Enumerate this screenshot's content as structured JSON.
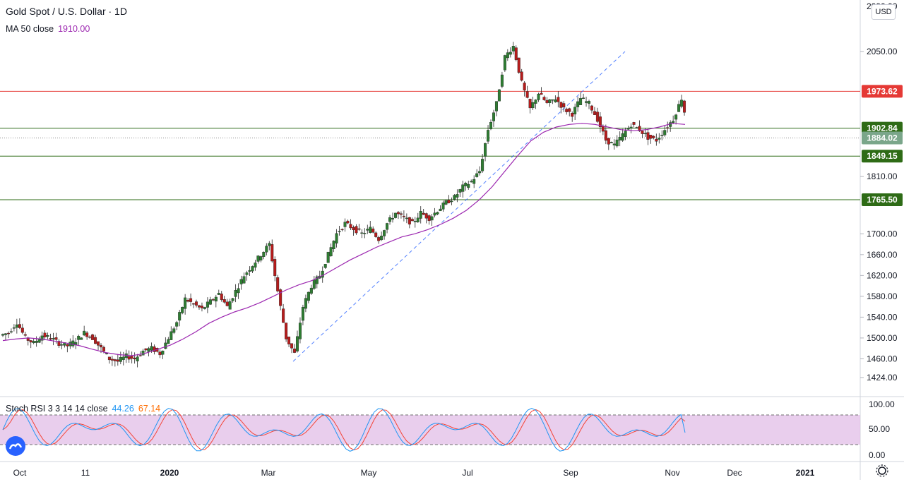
{
  "header": {
    "symbol_title": "Gold Spot / U.S. Dollar · 1D",
    "ma_label": "MA 50 close",
    "ma_value": "1910.00",
    "currency": "USD"
  },
  "stoch_legend": {
    "label": "Stoch RSI 3 3 14 14 close",
    "k_value": "44.26",
    "d_value": "67.14"
  },
  "colors": {
    "up_candle": "#2e7d32",
    "down_candle": "#b71c1c",
    "ma_line": "#9c27b0",
    "resistance_line": "#e53935",
    "support_line": "#2e6b16",
    "trend_line": "#2962ff",
    "stoch_k": "#2196f3",
    "stoch_d": "#f44336",
    "stoch_band": "#e1bee7"
  },
  "chart_data": {
    "type": "candlestick",
    "y_axis_ticks": [
      "2090.00",
      "2050.00",
      "1810.00",
      "1700.00",
      "1660.00",
      "1620.00",
      "1580.00",
      "1540.00",
      "1500.00",
      "1460.00",
      "1424.00"
    ],
    "x_axis_labels": [
      "Oct",
      "11",
      "2020",
      "Mar",
      "May",
      "Jul",
      "Sep",
      "Nov",
      "Dec",
      "2021"
    ],
    "price_lines": [
      {
        "value": 1973.62,
        "label": "1973.62",
        "kind": "resistance"
      },
      {
        "value": 1902.84,
        "label": "1902.84",
        "kind": "support"
      },
      {
        "value": 1884.02,
        "label": "1884.02",
        "kind": "last_price"
      },
      {
        "value": 1849.15,
        "label": "1849.15",
        "kind": "support"
      },
      {
        "value": 1765.5,
        "label": "1765.50",
        "kind": "support"
      }
    ],
    "close_series": [
      1510,
      1530,
      1500,
      1490,
      1505,
      1500,
      1490,
      1485,
      1495,
      1510,
      1500,
      1480,
      1460,
      1455,
      1465,
      1460,
      1475,
      1480,
      1470,
      1500,
      1530,
      1575,
      1565,
      1555,
      1570,
      1585,
      1560,
      1590,
      1620,
      1640,
      1660,
      1680,
      1590,
      1500,
      1470,
      1560,
      1600,
      1620,
      1660,
      1700,
      1720,
      1710,
      1700,
      1710,
      1690,
      1720,
      1740,
      1730,
      1720,
      1740,
      1730,
      1745,
      1760,
      1770,
      1790,
      1800,
      1820,
      1900,
      1950,
      2040,
      2060,
      1990,
      1940,
      1970,
      1950,
      1960,
      1940,
      1930,
      1960,
      1950,
      1920,
      1880,
      1870,
      1890,
      1910,
      1900,
      1885,
      1880,
      1900,
      1920,
      1960,
      1884
    ],
    "ma50_series": [
      1495,
      1498,
      1500,
      1498,
      1494,
      1490,
      1485,
      1478,
      1472,
      1468,
      1466,
      1470,
      1478,
      1486,
      1498,
      1512,
      1528,
      1540,
      1550,
      1558,
      1568,
      1580,
      1592,
      1602,
      1610,
      1622,
      1636,
      1650,
      1662,
      1674,
      1684,
      1694,
      1700,
      1708,
      1718,
      1730,
      1745,
      1765,
      1790,
      1820,
      1850,
      1878,
      1895,
      1905,
      1910,
      1912,
      1910,
      1905,
      1900,
      1898,
      1900,
      1905,
      1912,
      1910
    ],
    "trend_line": {
      "from": [
        1455,
        "Mar"
      ],
      "to": [
        2060,
        "Aug"
      ]
    },
    "stoch_rsi": {
      "levels": [
        0,
        20,
        50,
        80,
        100
      ],
      "k_last": 44.26,
      "d_last": 67.14
    }
  }
}
